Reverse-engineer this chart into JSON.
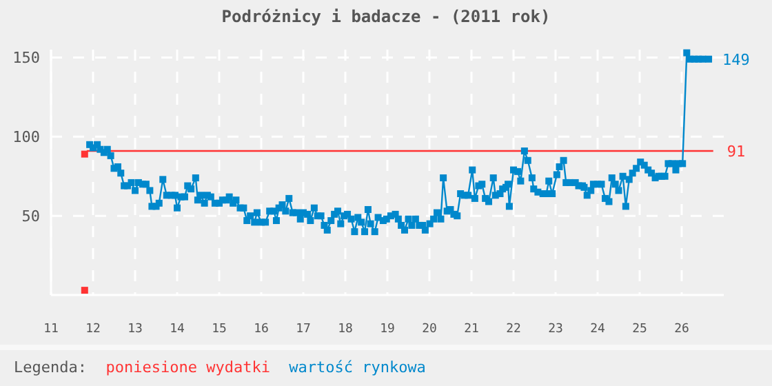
{
  "chart_data": {
    "type": "line",
    "title": "Podróżnicy i badacze - (2011 rok)",
    "legend_title": "Legenda:",
    "legend": "bottom",
    "grid": true,
    "xlim": [
      11,
      27
    ],
    "xticks": [
      11,
      12,
      13,
      14,
      15,
      16,
      17,
      18,
      19,
      20,
      21,
      22,
      23,
      24,
      25,
      26
    ],
    "ylim": [
      0,
      155
    ],
    "yticks": [
      50,
      100,
      150
    ],
    "series": [
      {
        "type": "scatter",
        "color": "#ff3333",
        "marker": "square",
        "x": [
          11.8,
          11.8
        ],
        "values": [
          3,
          89
        ]
      },
      {
        "name": "poniesione wydatki",
        "color": "#ff3333",
        "marker": "none",
        "x": [
          11.85,
          26.75
        ],
        "values": [
          91,
          91
        ],
        "value_labels": [
          null,
          "91"
        ]
      },
      {
        "name": "wartość rynkowa",
        "color": "#0088cc",
        "marker": "square",
        "x": [
          11.92,
          12.0,
          12.1,
          12.17,
          12.26,
          12.34,
          12.42,
          12.5,
          12.59,
          12.66,
          12.74,
          12.82,
          12.91,
          13.0,
          13.08,
          13.18,
          13.26,
          13.35,
          13.4,
          13.5,
          13.57,
          13.66,
          13.75,
          13.86,
          13.95,
          14.0,
          14.09,
          14.18,
          14.25,
          14.33,
          14.44,
          14.49,
          14.56,
          14.65,
          14.72,
          14.8,
          14.9,
          15.0,
          15.08,
          15.17,
          15.24,
          15.33,
          15.4,
          15.5,
          15.58,
          15.66,
          15.74,
          15.84,
          15.9,
          16.0,
          16.1,
          16.2,
          16.3,
          16.36,
          16.42,
          16.5,
          16.58,
          16.66,
          16.75,
          16.84,
          16.93,
          17.0,
          17.1,
          17.17,
          17.26,
          17.34,
          17.42,
          17.5,
          17.57,
          17.66,
          17.74,
          17.82,
          17.89,
          17.97,
          18.05,
          18.14,
          18.22,
          18.3,
          18.38,
          18.46,
          18.54,
          18.6,
          18.7,
          18.78,
          18.9,
          18.98,
          19.08,
          19.19,
          19.26,
          19.33,
          19.41,
          19.5,
          19.58,
          19.67,
          19.76,
          19.84,
          19.9,
          20.01,
          20.1,
          20.18,
          20.27,
          20.33,
          20.42,
          20.5,
          20.58,
          20.66,
          20.74,
          20.83,
          20.92,
          21.02,
          21.08,
          21.17,
          21.25,
          21.33,
          21.41,
          21.52,
          21.57,
          21.68,
          21.74,
          21.82,
          21.87,
          21.9,
          22.0,
          22.1,
          22.17,
          22.26,
          22.34,
          22.44,
          22.48,
          22.58,
          22.7,
          22.78,
          22.84,
          22.92,
          23.03,
          23.09,
          23.19,
          23.25,
          23.34,
          23.47,
          23.55,
          23.64,
          23.68,
          23.75,
          23.84,
          23.9,
          24.0,
          24.09,
          24.18,
          24.27,
          24.34,
          24.42,
          24.5,
          24.6,
          24.67,
          24.75,
          24.83,
          24.92,
          25.02,
          25.11,
          25.2,
          25.28,
          25.37,
          25.45,
          25.52,
          25.6,
          25.68,
          25.77,
          25.86,
          25.92,
          26.02,
          26.12,
          26.2,
          26.3,
          26.4,
          26.5,
          26.64
        ],
        "values": [
          95,
          93,
          95,
          92,
          90,
          92,
          88,
          80,
          81,
          77,
          69,
          69,
          71,
          66,
          71,
          70,
          70,
          66,
          56,
          56,
          58,
          73,
          63,
          63,
          63,
          55,
          62,
          62,
          69,
          67,
          74,
          60,
          63,
          58,
          63,
          62,
          58,
          58,
          60,
          60,
          62,
          58,
          60,
          55,
          55,
          47,
          50,
          46,
          52,
          46,
          46,
          53,
          53,
          47,
          55,
          57,
          53,
          61,
          52,
          52,
          48,
          52,
          51,
          47,
          55,
          50,
          50,
          44,
          41,
          47,
          51,
          53,
          45,
          50,
          51,
          48,
          40,
          49,
          46,
          40,
          54,
          45,
          40,
          49,
          47,
          48,
          50,
          51,
          48,
          44,
          41,
          48,
          44,
          48,
          44,
          44,
          41,
          45,
          48,
          52,
          48,
          74,
          53,
          54,
          51,
          50,
          64,
          63,
          63,
          79,
          61,
          69,
          70,
          61,
          59,
          74,
          63,
          64,
          67,
          68,
          70,
          56,
          79,
          78,
          72,
          91,
          85,
          74,
          67,
          65,
          64,
          64,
          72,
          64,
          76,
          81,
          85,
          71,
          71,
          71,
          69,
          69,
          68,
          63,
          66,
          70,
          70,
          70,
          61,
          59,
          74,
          70,
          66,
          75,
          56,
          73,
          77,
          80,
          84,
          82,
          79,
          77,
          74,
          75,
          75,
          75,
          83,
          83,
          79,
          83,
          83,
          153,
          149,
          149,
          149,
          149,
          149
        ],
        "value_labels": [
          null,
          null,
          null,
          null,
          null,
          null,
          null,
          null,
          null,
          null,
          null,
          null,
          null,
          null,
          null,
          null,
          null,
          null,
          null,
          null,
          null,
          null,
          null,
          null,
          null,
          null,
          null,
          null,
          null,
          null,
          null,
          null,
          null,
          null,
          null,
          null,
          null,
          null,
          null,
          null,
          null,
          null,
          null,
          null,
          null,
          null,
          null,
          null,
          null,
          null,
          null,
          null,
          null,
          null,
          null,
          null,
          null,
          null,
          null,
          null,
          null,
          null,
          null,
          null,
          null,
          null,
          null,
          null,
          null,
          null,
          null,
          null,
          null,
          null,
          null,
          null,
          null,
          null,
          null,
          null,
          null,
          null,
          null,
          null,
          null,
          null,
          null,
          null,
          null,
          null,
          null,
          null,
          null,
          null,
          null,
          null,
          null,
          null,
          null,
          null,
          null,
          null,
          null,
          null,
          null,
          null,
          null,
          null,
          null,
          null,
          null,
          null,
          null,
          null,
          null,
          null,
          null,
          null,
          null,
          null,
          null,
          null,
          null,
          null,
          null,
          null,
          null,
          null,
          null,
          null,
          null,
          null,
          null,
          null,
          null,
          null,
          null,
          null,
          null,
          null,
          null,
          null,
          null,
          null,
          null,
          null,
          null,
          null,
          null,
          null,
          null,
          null,
          null,
          null,
          null,
          null,
          null,
          null,
          null,
          null,
          null,
          null,
          null,
          null,
          null,
          null,
          null,
          null,
          null,
          null,
          null,
          null,
          null,
          null,
          null,
          null,
          "149"
        ]
      }
    ]
  }
}
